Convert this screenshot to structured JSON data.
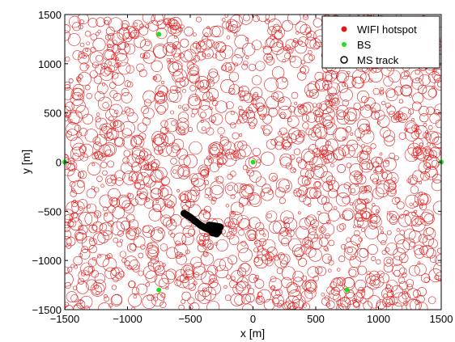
{
  "chart_data": {
    "type": "scatter",
    "title": "",
    "xlabel": "x [m]",
    "ylabel": "y [m]",
    "xlim": [
      -1500,
      1500
    ],
    "ylim": [
      -1500,
      1500
    ],
    "xticks": [
      -1500,
      -1000,
      -500,
      0,
      500,
      1000,
      1500
    ],
    "yticks": [
      -1500,
      -1000,
      -500,
      0,
      500,
      1000,
      1500
    ],
    "xtick_labels": [
      "−1500",
      "−1000",
      "−500",
      "0",
      "500",
      "1000",
      "1500"
    ],
    "ytick_labels": [
      "−1500",
      "−1000",
      "−500",
      "0",
      "500",
      "1000",
      "1500"
    ],
    "grid": false,
    "legend_position": "top-right",
    "colors": {
      "wifi": "#e01b1b",
      "bs": "#22dd22",
      "track": "#000000"
    },
    "series": [
      {
        "name": "WIFI hotspot",
        "marker": "circle-outline",
        "count": 1800,
        "distribution": "uniform random over the plot area",
        "radius_range_m": [
          10,
          55
        ]
      },
      {
        "name": "BS",
        "marker": "point",
        "points": [
          [
            -750,
            1300
          ],
          [
            -1500,
            0
          ],
          [
            0,
            0
          ],
          [
            1500,
            0
          ],
          [
            -750,
            -1300
          ],
          [
            750,
            -1300
          ]
        ]
      },
      {
        "name": "MS track",
        "marker": "circle-outline",
        "points": [
          [
            -550,
            -520
          ],
          [
            -500,
            -560
          ],
          [
            -460,
            -600
          ],
          [
            -420,
            -640
          ],
          [
            -380,
            -670
          ],
          [
            -340,
            -690
          ],
          [
            -320,
            -720
          ],
          [
            -300,
            -700
          ],
          [
            -280,
            -680
          ],
          [
            -260,
            -660
          ],
          [
            -300,
            -650
          ],
          [
            -350,
            -640
          ],
          [
            -330,
            -710
          ],
          [
            -290,
            -730
          ],
          [
            -270,
            -700
          ]
        ]
      }
    ]
  }
}
